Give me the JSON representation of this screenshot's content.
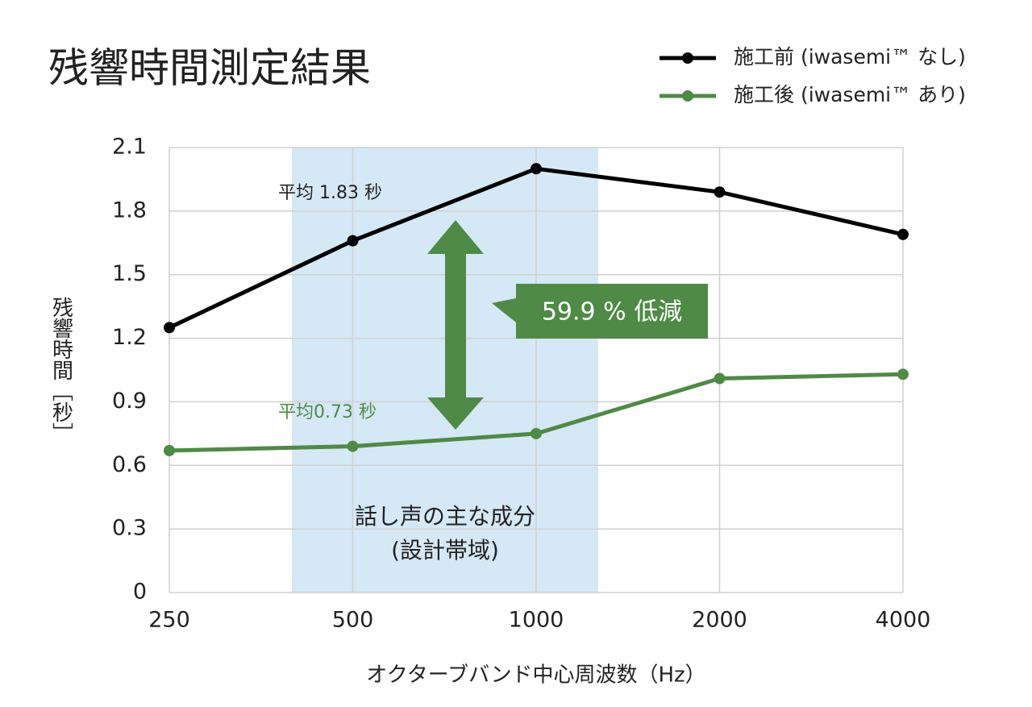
{
  "chart_data": {
    "type": "line",
    "title": "残響時間測定結果",
    "x_label": "オクターブバンド中心周波数（Hz）",
    "y_label": "残響時間［秒］",
    "categories": [
      "250",
      "500",
      "1000",
      "2000",
      "4000"
    ],
    "series": [
      {
        "name": "施工前 (iwasemi™ なし)",
        "color": "#000000",
        "values": [
          1.25,
          1.66,
          2.0,
          1.89,
          1.69
        ]
      },
      {
        "name": "施工後 (iwasemi™ あり)",
        "color": "#4f8a46",
        "values": [
          0.67,
          0.69,
          0.75,
          1.01,
          1.03
        ]
      }
    ],
    "ylim": [
      0,
      2.1
    ],
    "yticks": [
      0,
      0.3,
      0.6,
      0.9,
      1.2,
      1.5,
      1.8,
      2.1
    ],
    "grid": true,
    "legend": "top-right",
    "annotations": [
      "平均 1.83 秒",
      "平均0.73 秒",
      "59.9 % 低減",
      "話し声の主な成分",
      "(設計帯域)"
    ]
  }
}
